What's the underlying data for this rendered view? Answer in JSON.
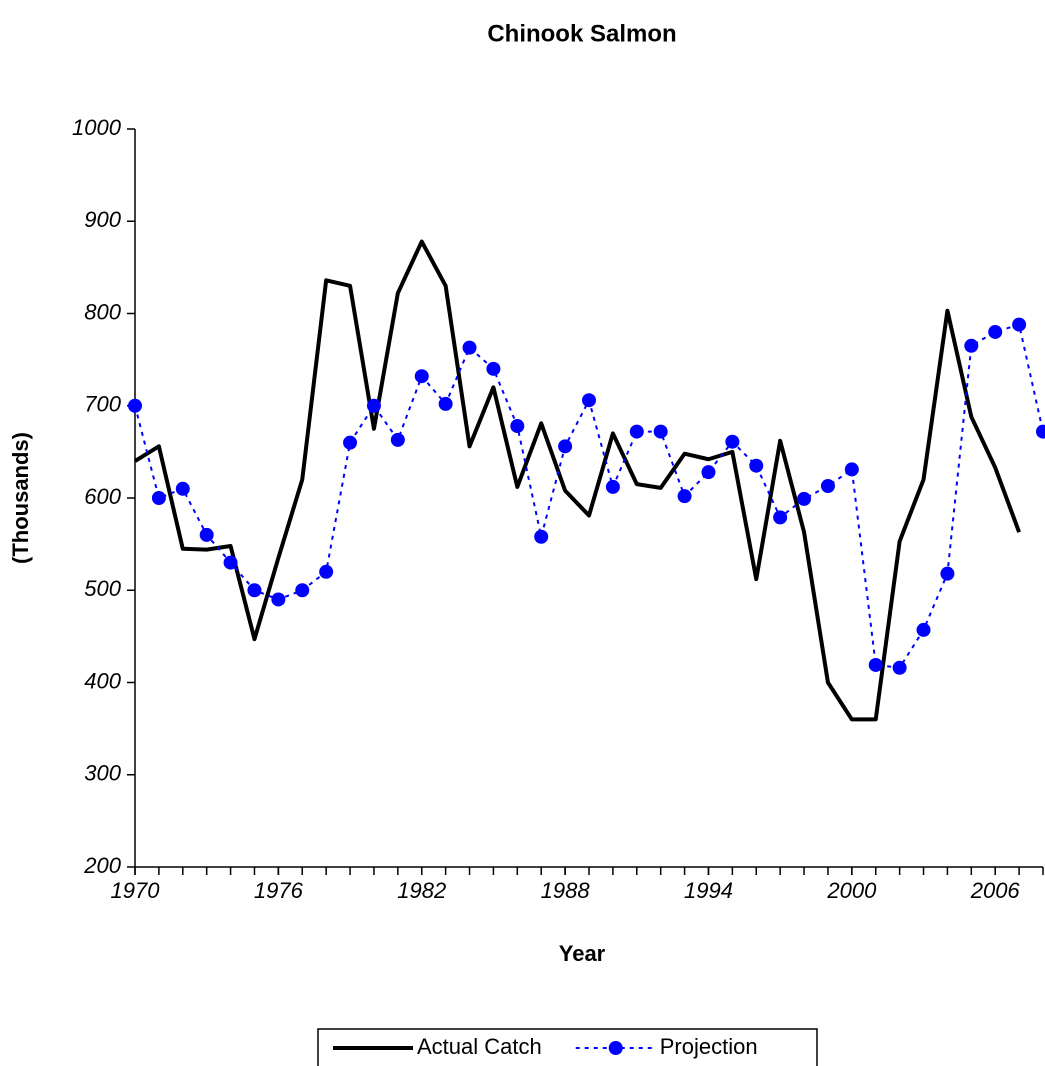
{
  "chart_data": {
    "type": "line",
    "title": "Chinook Salmon",
    "x_label": "Year",
    "y_label": "(Thousands)",
    "x": [
      1970,
      1971,
      1972,
      1973,
      1974,
      1975,
      1976,
      1977,
      1978,
      1979,
      1980,
      1981,
      1982,
      1983,
      1984,
      1985,
      1986,
      1987,
      1988,
      1989,
      1990,
      1991,
      1992,
      1993,
      1994,
      1995,
      1996,
      1997,
      1998,
      1999,
      2000,
      2001,
      2002,
      2003,
      2004,
      2005,
      2006,
      2007,
      2008
    ],
    "series": [
      {
        "name": "Actual Catch",
        "color": "#000000",
        "style": "solid",
        "marker": false,
        "values": [
          640,
          656,
          545,
          544,
          548,
          447,
          535,
          620,
          836,
          830,
          675,
          822,
          878,
          830,
          656,
          720,
          612,
          681,
          608,
          581,
          670,
          615,
          611,
          648,
          642,
          650,
          512,
          662,
          563,
          400,
          360,
          360,
          553,
          620,
          803,
          688,
          633,
          563,
          null
        ]
      },
      {
        "name": "Projection",
        "color": "#0000ff",
        "style": "dotted",
        "marker": true,
        "values": [
          700,
          600,
          610,
          560,
          530,
          500,
          490,
          500,
          520,
          660,
          700,
          663,
          732,
          702,
          763,
          740,
          678,
          558,
          656,
          706,
          612,
          672,
          672,
          602,
          628,
          661,
          635,
          579,
          599,
          613,
          631,
          419,
          416,
          457,
          518,
          765,
          780,
          788,
          672
        ]
      }
    ],
    "xlim": [
      1970,
      2008
    ],
    "xticks": [
      1970,
      1976,
      1982,
      1988,
      1994,
      2000,
      2006
    ],
    "ylim": [
      200,
      1000
    ],
    "yticks": [
      200,
      300,
      400,
      500,
      600,
      700,
      800,
      900,
      1000
    ],
    "grid": false,
    "legend": "bottom"
  }
}
